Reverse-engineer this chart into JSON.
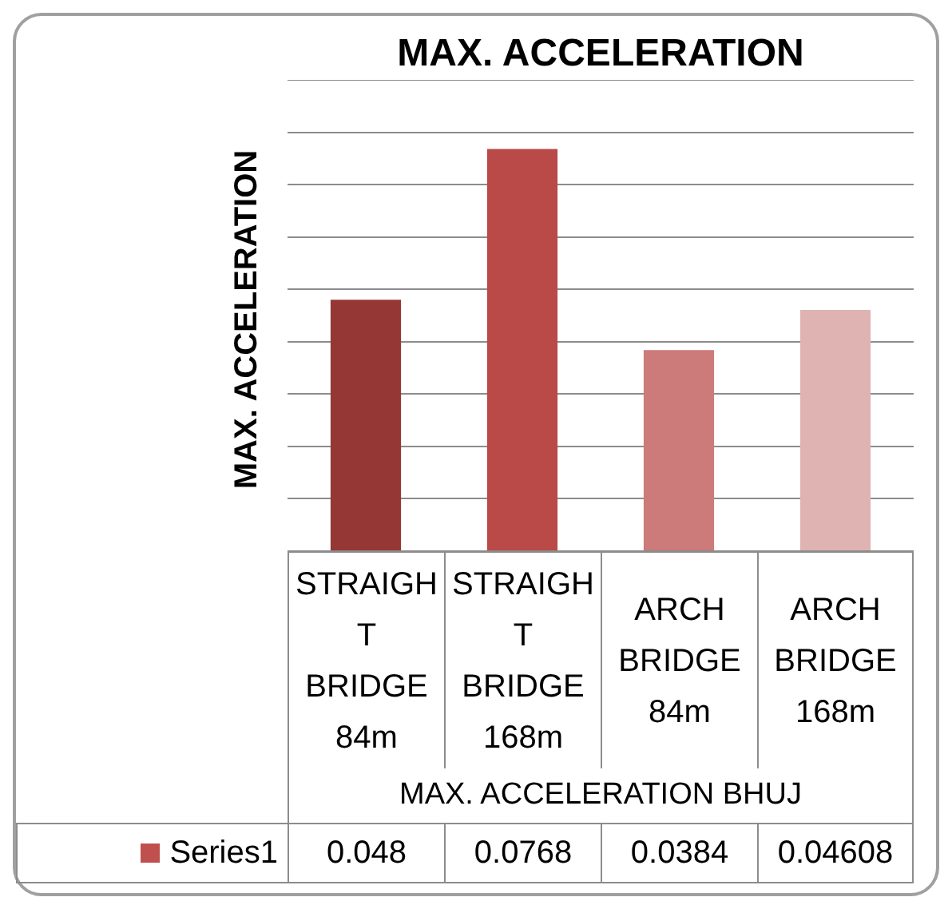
{
  "chart_data": {
    "type": "bar",
    "title": "MAX. ACCELERATION",
    "ylabel": "MAX. ACCELERATION",
    "xlabel": "MAX. ACCELERATION BHUJ",
    "categories": [
      "STRAIGHT BRIDGE 84m",
      "STRAIGHT BRIDGE 168m",
      "ARCH BRIDGE 84m",
      "ARCH BRIDGE 168m"
    ],
    "series": [
      {
        "name": "Series1",
        "color": "#c0504d",
        "colors": [
          "#953735",
          "#b94a48",
          "#cc7b7a",
          "#e0b3b3"
        ],
        "values": [
          0.048,
          0.0768,
          0.0384,
          0.04608
        ]
      }
    ],
    "ylim": [
      0,
      0.09
    ],
    "yticks": [
      {
        "value": 0,
        "label": null
      },
      {
        "value": 0.01,
        "label": null
      },
      {
        "value": 0.02,
        "label": null
      },
      {
        "value": 0.03,
        "label": null
      },
      {
        "value": 0.04,
        "label": null
      },
      {
        "value": 0.05,
        "label": null
      },
      {
        "value": 0.06,
        "label": null
      },
      {
        "value": 0.07,
        "label": null
      },
      {
        "value": 0.08,
        "label": null
      },
      {
        "value": 0.09,
        "label": null
      }
    ],
    "grid": "y",
    "data_labels": true,
    "tick_labels": "x"
  }
}
